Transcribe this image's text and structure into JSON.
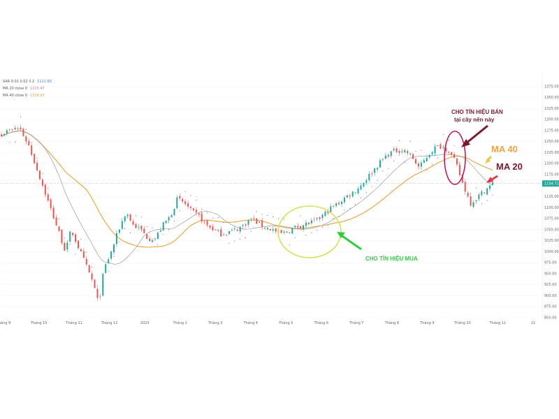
{
  "legend": [
    {
      "label": "SAR 0.02 0.02 0.2",
      "value": "1111.60",
      "color": "#3b7dd8"
    },
    {
      "label": "MA 20 close 0",
      "value": "1155.47",
      "color": "#c87ab0"
    },
    {
      "label": "MA 40 close 0",
      "value": "1158.93",
      "color": "#e8a23c"
    }
  ],
  "annotations": {
    "sell": "CHO TÍN HIỆU BÁN",
    "sell_sub": "tại cây nến này",
    "buy": "CHO TÍN HIỆU MUA",
    "ma40": "MA 40",
    "ma20": "MA 20"
  },
  "colors": {
    "up": "#26a69a",
    "down": "#ef5350",
    "ma20": "#8a8a8a",
    "ma40": "#e8a23c",
    "sar": "#333333",
    "price_tag": "#26a69a",
    "sell_marker": "#c2185b",
    "buy_marker": "#d4e157",
    "buy_arrow": "#2ecc40",
    "sell_arrow": "#7a1a2e",
    "ma40_arrow": "#f2c14e",
    "ma20_arrow": "#e63946"
  },
  "chart_data": {
    "type": "candlestick",
    "ylim": [
      850,
      1400
    ],
    "y_ticks": [
      {
        "value": 1375,
        "label": "1375.00"
      },
      {
        "value": 1350,
        "label": "1350.00"
      },
      {
        "value": 1325,
        "label": "1325.00"
      },
      {
        "value": 1300,
        "label": "1300.00"
      },
      {
        "value": 1275,
        "label": "1275.00"
      },
      {
        "value": 1250,
        "label": "1250.00"
      },
      {
        "value": 1225,
        "label": "1225.00"
      },
      {
        "value": 1200,
        "label": "1200.00"
      },
      {
        "value": 1175,
        "label": "1175.00"
      },
      {
        "value": 1125,
        "label": "1125.00"
      },
      {
        "value": 1100,
        "label": "1100.00"
      },
      {
        "value": 1075,
        "label": "1075.00"
      },
      {
        "value": 1050,
        "label": "1050.00"
      },
      {
        "value": 1025,
        "label": "1025.00"
      },
      {
        "value": 1000,
        "label": "1000.00"
      },
      {
        "value": 975,
        "label": "975.00"
      },
      {
        "value": 950,
        "label": "950.00"
      },
      {
        "value": 925,
        "label": "925.00"
      },
      {
        "value": 900,
        "label": "900.00"
      },
      {
        "value": 875,
        "label": "875.00"
      },
      {
        "value": 850,
        "label": "850.00"
      }
    ],
    "last_price": {
      "value": 1154.71,
      "label": "1154.71"
    },
    "x_ticks": [
      "Tháng 9",
      "Tháng 10",
      "Tháng 11",
      "Tháng 12",
      "2023",
      "Tháng 2",
      "Tháng 3",
      "Tháng 4",
      "Tháng 5",
      "Tháng 6",
      "Tháng 7",
      "Tháng 8",
      "Tháng 9",
      "Tháng 10",
      "Tháng 11",
      "21"
    ],
    "price_path": [
      [
        0,
        1268
      ],
      [
        5,
        1275
      ],
      [
        10,
        1280
      ],
      [
        15,
        1240
      ],
      [
        20,
        1180
      ],
      [
        25,
        1120
      ],
      [
        30,
        1060
      ],
      [
        35,
        1000
      ],
      [
        38,
        1050
      ],
      [
        42,
        1010
      ],
      [
        46,
        970
      ],
      [
        50,
        930
      ],
      [
        53,
        880
      ],
      [
        56,
        960
      ],
      [
        60,
        1000
      ],
      [
        64,
        1050
      ],
      [
        68,
        1090
      ],
      [
        72,
        1060
      ],
      [
        76,
        1050
      ],
      [
        80,
        1030
      ],
      [
        84,
        1030
      ],
      [
        88,
        1060
      ],
      [
        92,
        1080
      ],
      [
        96,
        1120
      ],
      [
        100,
        1110
      ],
      [
        104,
        1090
      ],
      [
        108,
        1080
      ],
      [
        112,
        1060
      ],
      [
        116,
        1050
      ],
      [
        120,
        1040
      ],
      [
        124,
        1045
      ],
      [
        128,
        1050
      ],
      [
        132,
        1060
      ],
      [
        136,
        1075
      ],
      [
        140,
        1065
      ],
      [
        144,
        1055
      ],
      [
        148,
        1050
      ],
      [
        152,
        1040
      ],
      [
        156,
        1045
      ],
      [
        160,
        1055
      ],
      [
        164,
        1060
      ],
      [
        168,
        1065
      ],
      [
        172,
        1070
      ],
      [
        176,
        1085
      ],
      [
        180,
        1100
      ],
      [
        184,
        1110
      ],
      [
        188,
        1125
      ],
      [
        192,
        1135
      ],
      [
        196,
        1150
      ],
      [
        200,
        1170
      ],
      [
        204,
        1190
      ],
      [
        208,
        1210
      ],
      [
        212,
        1225
      ],
      [
        216,
        1230
      ],
      [
        220,
        1230
      ],
      [
        224,
        1215
      ],
      [
        228,
        1190
      ],
      [
        232,
        1215
      ],
      [
        236,
        1235
      ],
      [
        240,
        1240
      ],
      [
        244,
        1230
      ],
      [
        248,
        1200
      ],
      [
        252,
        1150
      ],
      [
        256,
        1110
      ],
      [
        260,
        1125
      ],
      [
        264,
        1140
      ],
      [
        268,
        1154
      ]
    ]
  }
}
